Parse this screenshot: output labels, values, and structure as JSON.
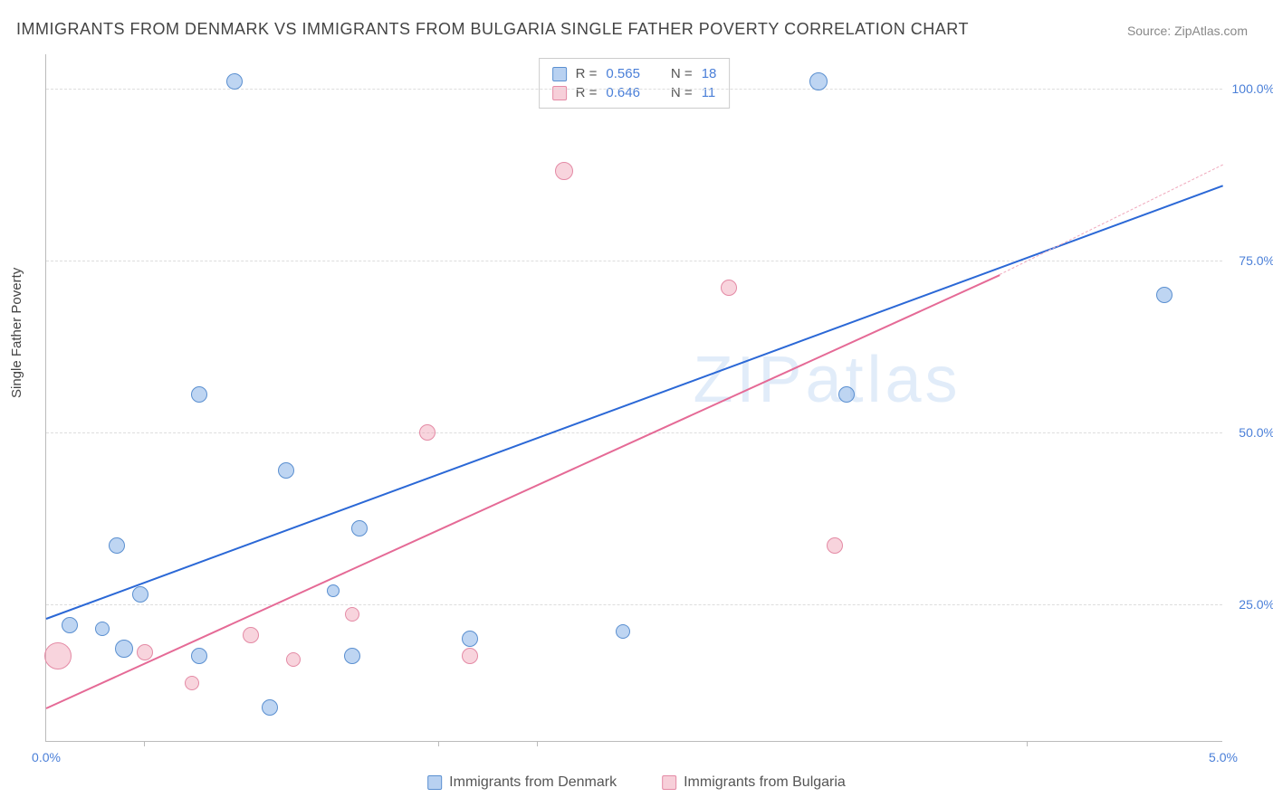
{
  "title": "IMMIGRANTS FROM DENMARK VS IMMIGRANTS FROM BULGARIA SINGLE FATHER POVERTY CORRELATION CHART",
  "source": "Source: ZipAtlas.com",
  "ylabel": "Single Father Poverty",
  "watermark": "ZIPatlas",
  "chart": {
    "type": "scatter",
    "xlim": [
      0.0,
      5.0
    ],
    "ylim": [
      5.0,
      105.0
    ],
    "x_ticks": [
      0.0,
      5.0
    ],
    "x_minor_ticks": [
      0.417,
      1.667,
      2.083,
      4.167
    ],
    "y_ticks": [
      25.0,
      50.0,
      75.0,
      100.0
    ],
    "y_tick_labels": [
      "25.0%",
      "50.0%",
      "75.0%",
      "100.0%"
    ],
    "x_tick_labels": [
      "0.0%",
      "5.0%"
    ],
    "background_color": "#ffffff",
    "grid_color": "#dddddd",
    "axis_color": "#bbbbbb",
    "tick_label_color": "#4a7fd8",
    "tick_label_fontsize": 14,
    "title_fontsize": 18,
    "title_color": "#444444",
    "ylabel_fontsize": 15,
    "series": [
      {
        "name": "Immigrants from Denmark",
        "color_fill": "#89b2e7",
        "color_stroke": "#5a8fd0",
        "fill_opacity": 0.55,
        "marker_radius_default": 9,
        "points": [
          {
            "x": 0.8,
            "y": 101.0,
            "r": 9
          },
          {
            "x": 3.28,
            "y": 101.0,
            "r": 10
          },
          {
            "x": 0.65,
            "y": 55.5,
            "r": 9
          },
          {
            "x": 3.4,
            "y": 55.5,
            "r": 9
          },
          {
            "x": 4.75,
            "y": 70.0,
            "r": 9
          },
          {
            "x": 1.02,
            "y": 44.5,
            "r": 9
          },
          {
            "x": 1.33,
            "y": 36.0,
            "r": 9
          },
          {
            "x": 0.3,
            "y": 33.5,
            "r": 9
          },
          {
            "x": 0.4,
            "y": 26.5,
            "r": 9
          },
          {
            "x": 0.1,
            "y": 22.0,
            "r": 9
          },
          {
            "x": 0.24,
            "y": 21.5,
            "r": 8
          },
          {
            "x": 1.8,
            "y": 20.0,
            "r": 9
          },
          {
            "x": 2.45,
            "y": 21.0,
            "r": 8
          },
          {
            "x": 0.33,
            "y": 18.5,
            "r": 10
          },
          {
            "x": 0.65,
            "y": 17.5,
            "r": 9
          },
          {
            "x": 1.3,
            "y": 17.5,
            "r": 9
          },
          {
            "x": 1.22,
            "y": 27.0,
            "r": 7
          },
          {
            "x": 0.95,
            "y": 10.0,
            "r": 9
          }
        ],
        "regression": {
          "x1": 0.0,
          "y1": 23.0,
          "x2": 5.0,
          "y2": 86.0,
          "color": "#2b68d6",
          "width": 2
        }
      },
      {
        "name": "Immigrants from Bulgaria",
        "color_fill": "#f0a0b4",
        "color_stroke": "#e48aa5",
        "fill_opacity": 0.45,
        "marker_radius_default": 9,
        "points": [
          {
            "x": 2.2,
            "y": 88.0,
            "r": 10
          },
          {
            "x": 2.9,
            "y": 71.0,
            "r": 9
          },
          {
            "x": 1.62,
            "y": 50.0,
            "r": 9
          },
          {
            "x": 3.35,
            "y": 33.5,
            "r": 9
          },
          {
            "x": 0.05,
            "y": 17.5,
            "r": 15
          },
          {
            "x": 0.42,
            "y": 18.0,
            "r": 9
          },
          {
            "x": 0.87,
            "y": 20.5,
            "r": 9
          },
          {
            "x": 1.3,
            "y": 23.5,
            "r": 8
          },
          {
            "x": 1.05,
            "y": 17.0,
            "r": 8
          },
          {
            "x": 1.8,
            "y": 17.5,
            "r": 9
          },
          {
            "x": 0.62,
            "y": 13.5,
            "r": 8
          }
        ],
        "regression": {
          "x1": 0.0,
          "y1": 10.0,
          "x2": 4.05,
          "y2": 73.0,
          "color": "#e56a96",
          "width": 2
        },
        "regression_ext": {
          "x1": 4.05,
          "y1": 73.0,
          "x2": 5.0,
          "y2": 89.0,
          "dashed": true,
          "color": "#f0a8bc"
        }
      }
    ]
  },
  "corr_legend": {
    "border_color": "#cccccc",
    "rows": [
      {
        "swatch": "blue",
        "r_label": "R =",
        "r_val": "0.565",
        "n_label": "N =",
        "n_val": "18"
      },
      {
        "swatch": "pink",
        "r_label": "R =",
        "r_val": "0.646",
        "n_label": "N =",
        "n_val": "11"
      }
    ]
  },
  "bottom_legend": [
    {
      "swatch": "blue",
      "label": "Immigrants from Denmark"
    },
    {
      "swatch": "pink",
      "label": "Immigrants from Bulgaria"
    }
  ]
}
